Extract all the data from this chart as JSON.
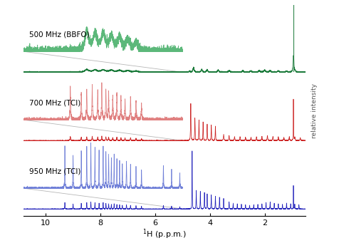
{
  "xlabel": "$^{1}$H (p.p.m.)",
  "ylabel": "relative intensity",
  "xlim": [
    10.8,
    0.5
  ],
  "background_color": "#ffffff",
  "labels": [
    "500 MHz (BBFO)",
    "700 MHz (TCI)",
    "950 MHz (TCI)"
  ],
  "colors": [
    "#1a7a3a",
    "#cc2222",
    "#2222bb"
  ],
  "light_colors": [
    "#5cb87a",
    "#e08080",
    "#7080d8"
  ],
  "seed": 42,
  "xticks": [
    10,
    8,
    6,
    4,
    2
  ],
  "water_line_color": "#1a7a3a",
  "gray_line_color": "#999999"
}
